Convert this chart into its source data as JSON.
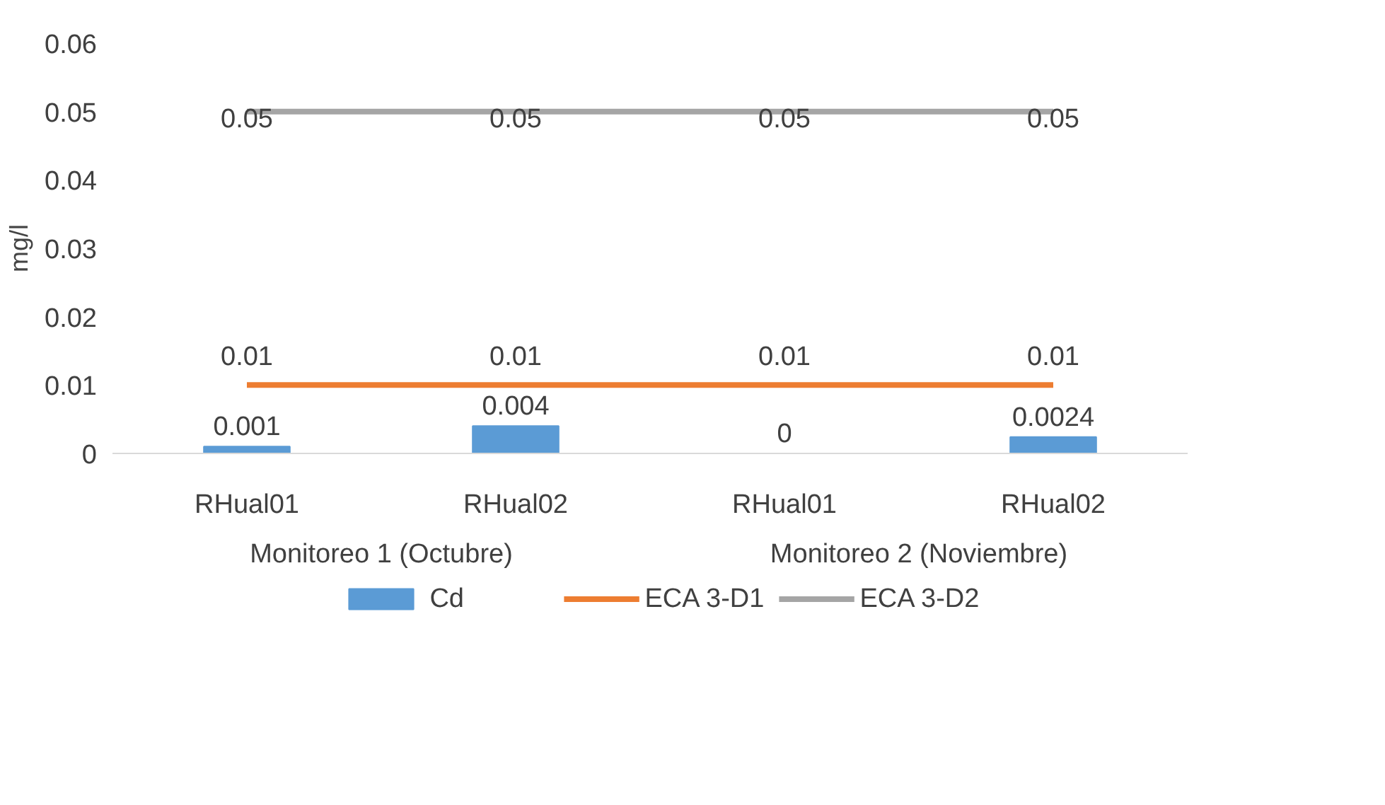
{
  "chart_data": {
    "type": "bar",
    "ylabel": "mg/l",
    "categories": [
      "RHual01",
      "RHual02",
      "RHual01",
      "RHual02"
    ],
    "annotations": [
      "Monitoreo 1 (Octubre)",
      "Monitoreo 2 (Noviembre)"
    ],
    "series": [
      {
        "name": "Cd",
        "type": "bar",
        "color": "#5b9bd5",
        "values": [
          0.001,
          0.004,
          0,
          0.0024
        ]
      },
      {
        "name": "ECA 3-D1",
        "type": "line",
        "color": "#ed7d31",
        "values": [
          0.01,
          0.01,
          0.01,
          0.01
        ]
      },
      {
        "name": "ECA 3-D2",
        "type": "line",
        "color": "#a5a5a5",
        "values": [
          0.05,
          0.05,
          0.05,
          0.05
        ]
      }
    ],
    "ylim": [
      0,
      0.06
    ],
    "yticks": [
      0,
      0.01,
      0.02,
      0.03,
      0.04,
      0.05,
      0.06
    ],
    "grid": false,
    "legend": "bottom",
    "data_labels": true
  }
}
